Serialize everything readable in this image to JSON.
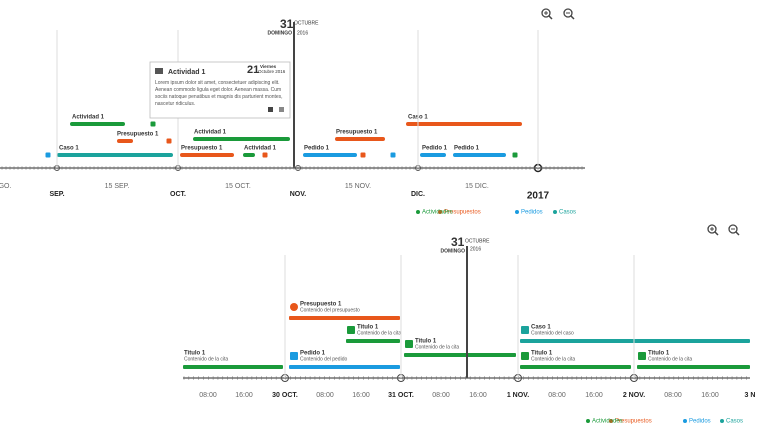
{
  "top_timeline": {
    "marker": {
      "day": "31",
      "month": "OCTUBRE",
      "weekday": "DOMINGO",
      "year": "2016"
    },
    "tooltip": {
      "title": "Actividad 1",
      "day": "21",
      "weekday": "Viernes",
      "month_year": "Octubre 2016",
      "body": "Lorem ipsum dolor sit amet, consectetuer adipiscing elit. Aenean commodo ligula eget dolor. Aenean massa. Cum sociis natoque penatibus et magnis dis parturient montes, nascetur ridiculus."
    },
    "items": [
      "Actividad 1",
      "Presupuesto 1",
      "Caso 1",
      "Actividad 1",
      "Presupuesto 1",
      "Actividad 1",
      "Pedido 1",
      "Presupuesto 1",
      "Caso 1",
      "Pedido 1",
      "Pedido 1"
    ],
    "axis_labels": [
      "GO.",
      "SEP.",
      "15 SEP.",
      "OCT.",
      "15 OCT.",
      "NOV.",
      "15 NOV.",
      "DIC.",
      "15 DIC.",
      "2017"
    ],
    "legend": [
      "Actividades",
      "Presupuestos",
      "Pedidos",
      "Casos"
    ]
  },
  "bottom_timeline": {
    "marker": {
      "day": "31",
      "month": "OCTUBRE",
      "weekday": "DOMINGO",
      "year": "2016"
    },
    "items": [
      {
        "title": "Titulo 1",
        "subtitle": "Contenido de la cita"
      },
      {
        "title": "Presupuesto 1",
        "subtitle": "Contenido del presupuesto"
      },
      {
        "title": "Titulo 1",
        "subtitle": "Contenido de la cita"
      },
      {
        "title": "Pedido 1",
        "subtitle": "Contenido del pedido"
      },
      {
        "title": "Titulo 1",
        "subtitle": "Contenido de la cita"
      },
      {
        "title": "Caso 1",
        "subtitle": "Contenido del caso"
      },
      {
        "title": "Titulo 1",
        "subtitle": "Contenido de la cita"
      },
      {
        "title": "Titulo 1",
        "subtitle": "Contenido de la cita"
      }
    ],
    "axis_labels": [
      "08:00",
      "16:00",
      "30 OCT.",
      "08:00",
      "16:00",
      "31 OCT.",
      "08:00",
      "16:00",
      "1 NOV.",
      "08:00",
      "16:00",
      "2 NOV.",
      "08:00",
      "16:00",
      "3 N"
    ],
    "legend": [
      "Actividades",
      "Presupuestos",
      "Pedidos",
      "Casos"
    ]
  }
}
